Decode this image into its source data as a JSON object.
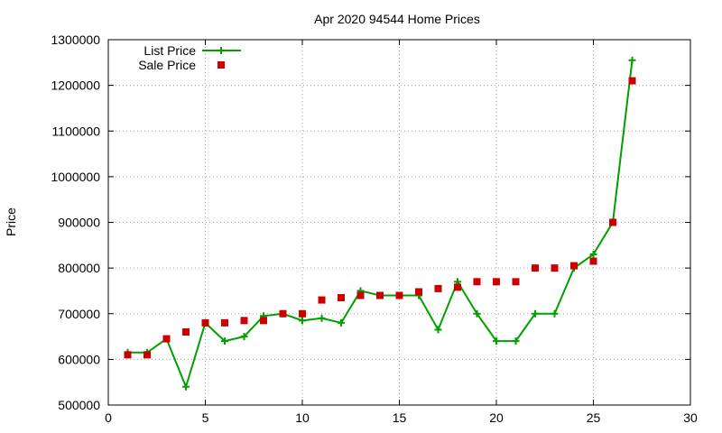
{
  "chart_data": {
    "type": "line",
    "title": "Apr 2020 94544 Home Prices",
    "xlabel": "",
    "ylabel": "Price",
    "xlim": [
      0,
      30
    ],
    "ylim": [
      500000,
      1300000
    ],
    "x_ticks": [
      0,
      5,
      10,
      15,
      20,
      25,
      30
    ],
    "y_ticks": [
      500000,
      600000,
      700000,
      800000,
      900000,
      1000000,
      1100000,
      1200000,
      1300000
    ],
    "grid": true,
    "legend_position": "top-left",
    "x": [
      1,
      2,
      3,
      4,
      5,
      6,
      7,
      8,
      9,
      10,
      11,
      12,
      13,
      14,
      15,
      16,
      17,
      18,
      19,
      20,
      21,
      22,
      23,
      24,
      25,
      26,
      27
    ],
    "series": [
      {
        "name": "List Price",
        "style": "linespoints",
        "marker": "plus",
        "color": "#00a000",
        "values": [
          615000,
          615000,
          645000,
          540000,
          680000,
          640000,
          650000,
          695000,
          700000,
          685000,
          690000,
          680000,
          750000,
          740000,
          740000,
          740000,
          665000,
          770000,
          700000,
          640000,
          640000,
          700000,
          700000,
          800000,
          830000,
          900000,
          1255000
        ]
      },
      {
        "name": "Sale Price",
        "style": "points",
        "marker": "square",
        "color": "#cc0000",
        "values": [
          610000,
          610000,
          645000,
          660000,
          680000,
          680000,
          685000,
          685000,
          700000,
          700000,
          730000,
          735000,
          740000,
          740000,
          740000,
          748000,
          755000,
          758000,
          770000,
          770000,
          770000,
          800000,
          800000,
          805000,
          815000,
          900000,
          1210000
        ]
      }
    ]
  }
}
